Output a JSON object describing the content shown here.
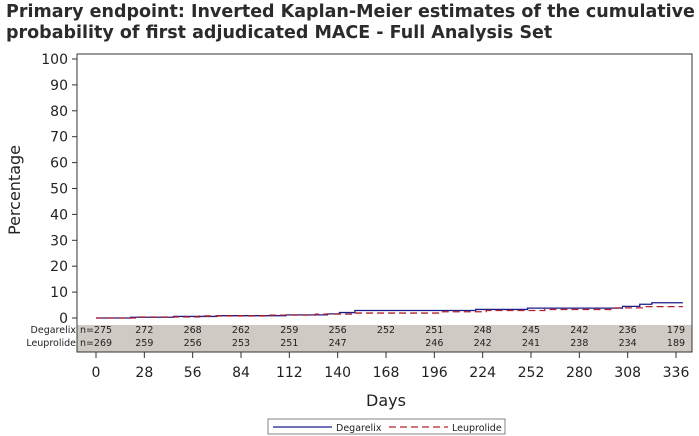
{
  "title_line1": "Primary endpoint: Inverted Kaplan-Meier estimates of the cumulative",
  "title_line2": "probability of first adjudicated MACE - Full Analysis Set",
  "chart_data": {
    "type": "line",
    "title": "Primary endpoint: Inverted Kaplan-Meier estimates of the cumulative probability of first adjudicated MACE - Full Analysis Set",
    "xlabel": "Days",
    "ylabel": "Percentage",
    "xlim": [
      0,
      336
    ],
    "ylim": [
      0,
      100
    ],
    "xticks": [
      0,
      28,
      56,
      84,
      112,
      140,
      168,
      196,
      224,
      252,
      280,
      308,
      336
    ],
    "yticks": [
      0,
      10,
      20,
      30,
      40,
      50,
      60,
      70,
      80,
      90,
      100
    ],
    "grid": false,
    "legend_position": "bottom",
    "series": [
      {
        "name": "Degarelix",
        "color": "#1c1c8c",
        "dash": "solid",
        "step": true,
        "x": [
          0,
          20,
          45,
          70,
          110,
          134,
          141,
          150,
          220,
          250,
          305,
          315,
          322,
          340
        ],
        "y": [
          0,
          0.3,
          0.6,
          0.9,
          1.2,
          1.6,
          2.1,
          2.9,
          3.3,
          3.8,
          4.5,
          5.3,
          5.9,
          5.9
        ]
      },
      {
        "name": "Leuprolide",
        "color": "#b0202a",
        "dash": "dashed",
        "step": true,
        "x": [
          0,
          25,
          60,
          98,
          127,
          150,
          200,
          226,
          260,
          300,
          318,
          340
        ],
        "y": [
          0,
          0.4,
          0.8,
          1.1,
          1.5,
          1.9,
          2.4,
          2.9,
          3.3,
          3.9,
          4.4,
          4.4
        ]
      }
    ],
    "at_risk": {
      "rows": [
        {
          "label": "Degarelix",
          "values": [
            "n=275",
            "272",
            "268",
            "262",
            "259",
            "256",
            "252",
            "251",
            "248",
            "245",
            "242",
            "236",
            "179"
          ]
        },
        {
          "label": "Leuprolide",
          "values": [
            "n=269",
            "259",
            "256",
            "253",
            "251",
            "247",
            "",
            "246",
            "242",
            "241",
            "238",
            "234",
            "189"
          ]
        }
      ]
    }
  }
}
